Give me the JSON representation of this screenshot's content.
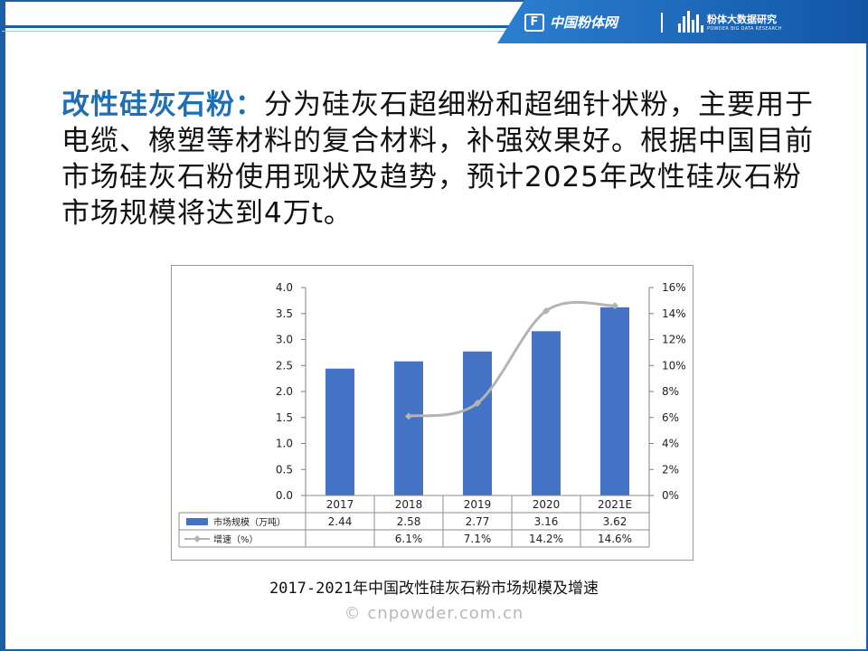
{
  "header": {
    "logo1_text": "中国粉体网",
    "logo1_mark": "F",
    "logo2_cn": "粉体大数据研究",
    "logo2_en": "POWDER BIG DATA RESEARCH",
    "divider": "|"
  },
  "paragraph": {
    "highlight": "改性硅灰石粉：",
    "body": "分为硅灰石超细粉和超细针状粉，主要用于电缆、橡塑等材料的复合材料，补强效果好。根据中国目前市场硅灰石粉使用现状及趋势，预计2025年改性硅灰石粉市场规模将达到4万t。"
  },
  "chart_data": {
    "type": "bar",
    "categories": [
      "2017",
      "2018",
      "2019",
      "2020",
      "2021E"
    ],
    "series": [
      {
        "name": "市场规模（万吨）",
        "type": "bar",
        "values": [
          2.44,
          2.58,
          2.77,
          3.16,
          3.62
        ],
        "labels": [
          "2.44",
          "2.58",
          "2.77",
          "3.16",
          "3.62"
        ]
      },
      {
        "name": "增速（%）",
        "type": "line",
        "axis": "right",
        "values": [
          null,
          6.1,
          7.1,
          14.2,
          14.6
        ],
        "labels": [
          "",
          "6.1%",
          "7.1%",
          "14.2%",
          "14.6%"
        ]
      }
    ],
    "y_left": {
      "min": 0,
      "max": 4.0,
      "ticks": [
        "0.0",
        "0.5",
        "1.0",
        "1.5",
        "2.0",
        "2.5",
        "3.0",
        "3.5",
        "4.0"
      ]
    },
    "y_right": {
      "min": 0,
      "max": 16,
      "ticks": [
        "0%",
        "2%",
        "4%",
        "6%",
        "8%",
        "10%",
        "12%",
        "14%",
        "16%"
      ]
    },
    "bar_color": "#4472c4",
    "line_color": "#b4b4b4",
    "legend": "table-bottom",
    "grid": false
  },
  "caption": "2017-2021年中国改性硅灰石粉市场规模及增速",
  "watermark": "© cnpowder.com.cn"
}
